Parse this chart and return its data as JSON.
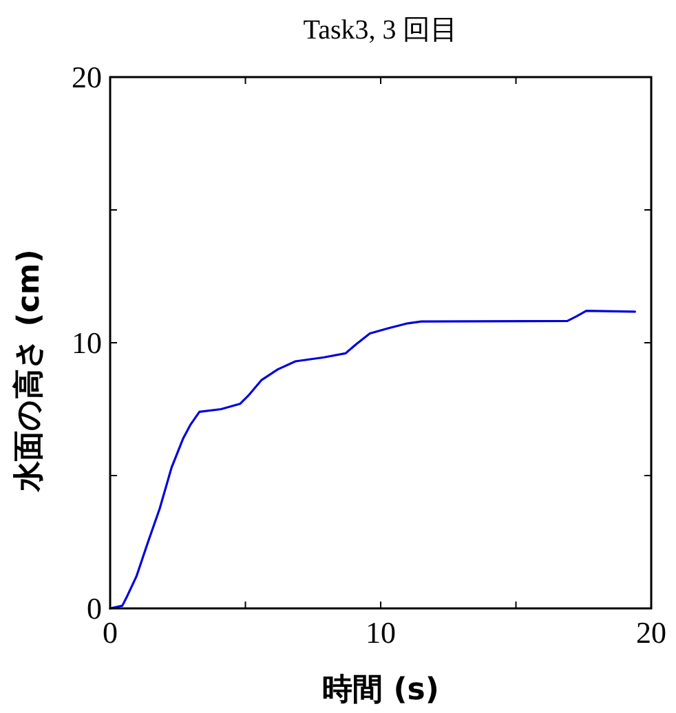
{
  "chart_data": {
    "type": "line",
    "title": "Task3, 3 回目",
    "xlabel": "時間 (s)",
    "ylabel": "水面の高さ (cm)",
    "xlim": [
      0,
      20
    ],
    "ylim": [
      0,
      20
    ],
    "xticks": [
      0,
      {
        "value": 5,
        "label": null
      },
      10,
      {
        "value": 15,
        "label": null
      },
      20
    ],
    "yticks": [
      0,
      {
        "value": 5,
        "label": null
      },
      10,
      {
        "value": 15,
        "label": null
      },
      20
    ],
    "grid": false,
    "marker": "none",
    "line_style": "solid",
    "series": [
      {
        "color": "#0000dd",
        "x": [
          0,
          0.45,
          0.6,
          0.97,
          1.4,
          1.83,
          2.27,
          2.7,
          2.96,
          3.3,
          4.1,
          4.8,
          5.1,
          5.6,
          6.2,
          6.85,
          7.9,
          8.7,
          9.1,
          9.6,
          10.3,
          11.0,
          11.5,
          16.9,
          17.25,
          17.6,
          19.4
        ],
        "values": [
          0,
          0.1,
          0.4,
          1.2,
          2.5,
          3.75,
          5.3,
          6.4,
          6.9,
          7.4,
          7.5,
          7.7,
          8.0,
          8.6,
          9.0,
          9.3,
          9.45,
          9.6,
          9.95,
          10.35,
          10.55,
          10.73,
          10.8,
          10.82,
          11.0,
          11.2,
          11.17
        ]
      }
    ]
  }
}
